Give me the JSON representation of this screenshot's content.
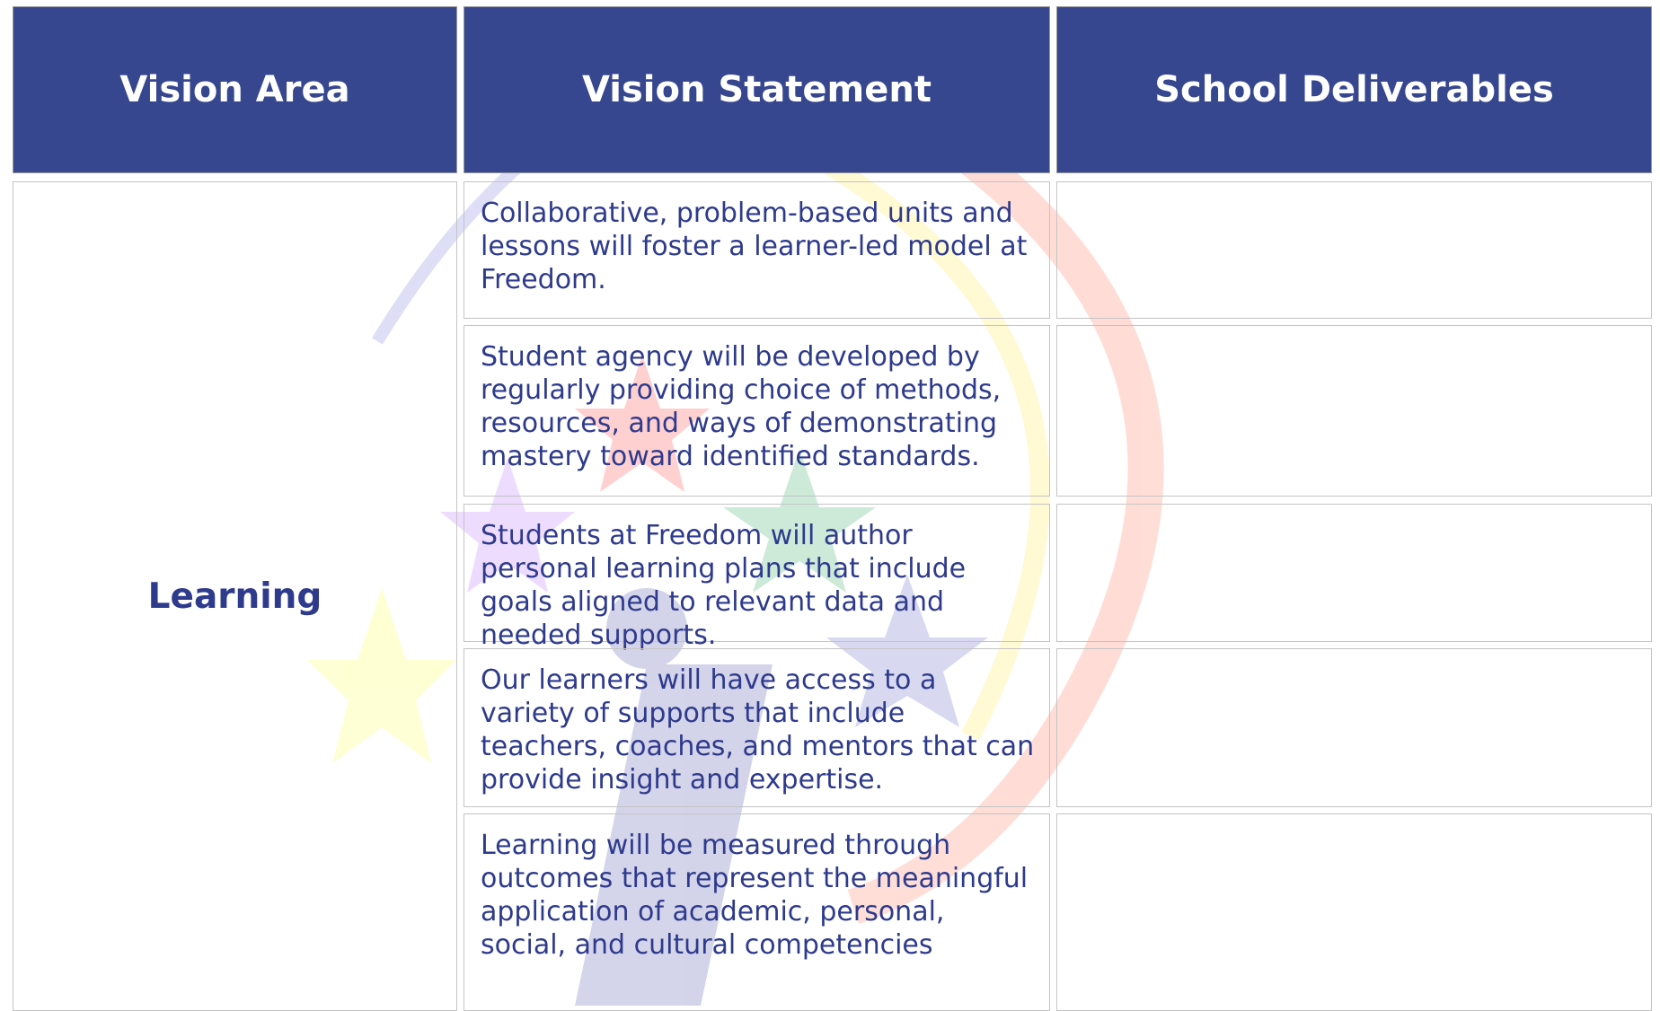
{
  "table": {
    "headers": [
      "Vision Area",
      "Vision Statement",
      "School Deliverables"
    ],
    "vision_area": "Learning",
    "statements": [
      "Collaborative, problem-based units and lessons will foster a learner-led model at Freedom.",
      "Student agency will be developed by regularly providing choice of methods, resources, and ways of demonstrating mastery toward identified standards.",
      "Students at Freedom will author personal learning plans that include goals aligned to relevant data and needed supports.",
      "Our learners will have access to a variety of supports that include teachers, coaches, and mentors that can provide insight and expertise.",
      "Learning will be measured through outcomes that represent the meaningful application of academic, personal, social, and cultural competencies"
    ]
  }
}
